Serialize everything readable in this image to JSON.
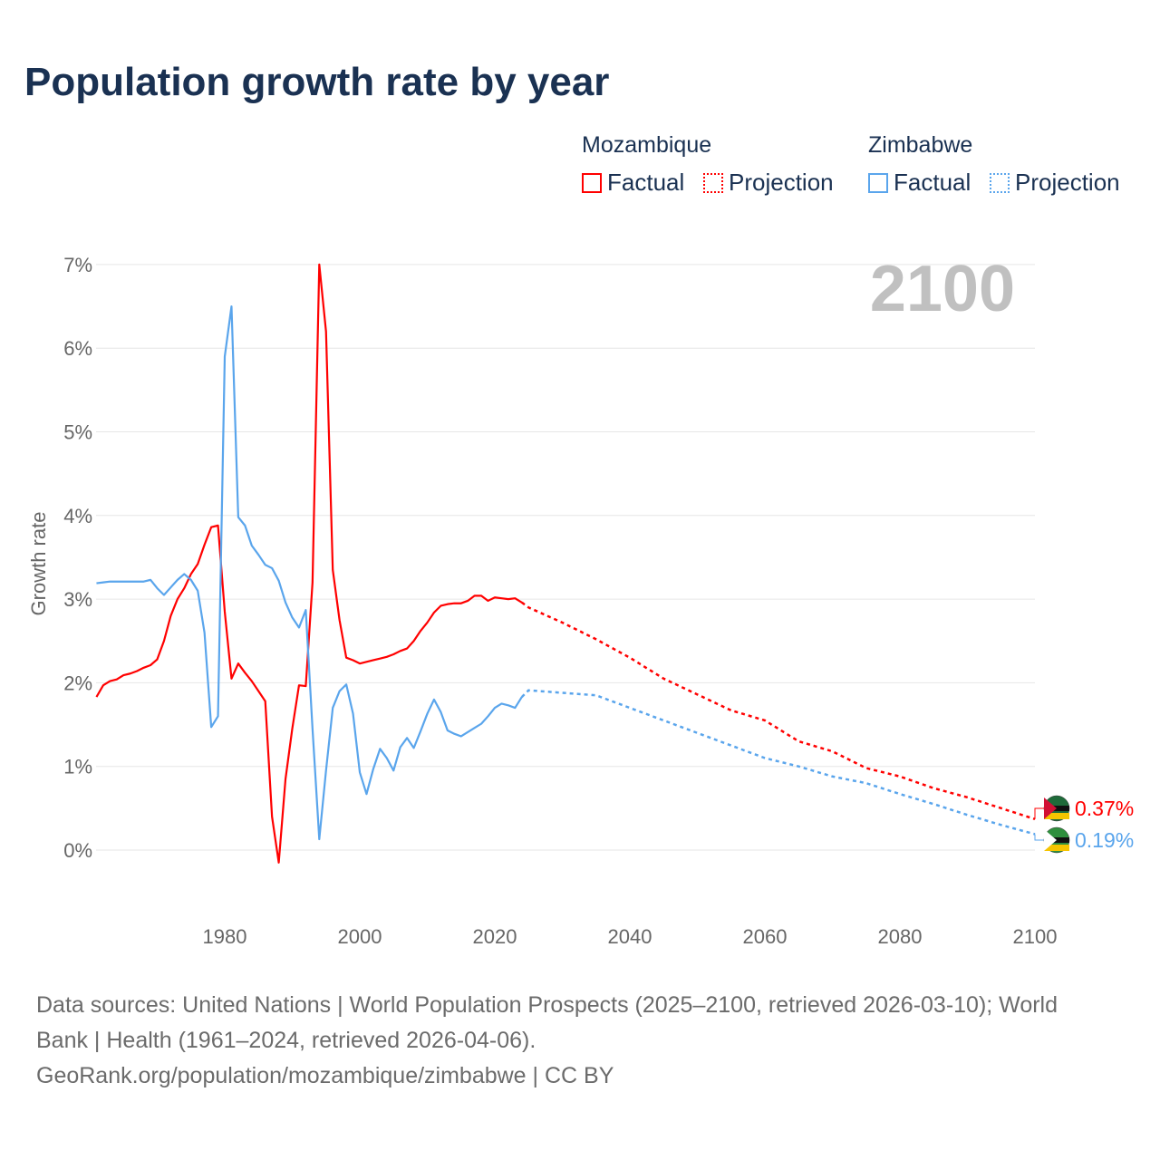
{
  "title": "Population growth rate by year",
  "legend": {
    "groups": [
      {
        "name": "Mozambique",
        "color": "#ff0000",
        "factual": "Factual",
        "projection": "Projection"
      },
      {
        "name": "Zimbabwe",
        "color": "#5aa5ec",
        "factual": "Factual",
        "projection": "Projection"
      }
    ]
  },
  "year_overlay": "2100",
  "source_lines": [
    "Data sources: United Nations | World Population Prospects (2025–2100, retrieved 2026-03-10); World",
    "Bank | Health (1961–2024, retrieved 2026-04-06).",
    "GeoRank.org/population/mozambique/zimbabwe | CC BY"
  ],
  "chart_data": {
    "type": "line",
    "title": "Population growth rate by year",
    "xlabel": "",
    "ylabel": "Growth rate",
    "xlim": [
      1961,
      2100
    ],
    "ylim": [
      -0.5,
      7.3
    ],
    "xticks": [
      1980,
      2000,
      2020,
      2040,
      2060,
      2080,
      2100
    ],
    "yticks": [
      0,
      1,
      2,
      3,
      4,
      5,
      6,
      7
    ],
    "ytick_labels": [
      "0%",
      "1%",
      "2%",
      "3%",
      "4%",
      "5%",
      "6%",
      "7%"
    ],
    "grid": true,
    "series": [
      {
        "name": "Mozambique",
        "color": "#ff0000",
        "end_label": "0.37%",
        "factual": {
          "x_start": 1961,
          "values": [
            1.83,
            1.97,
            2.02,
            2.04,
            2.09,
            2.11,
            2.14,
            2.18,
            2.21,
            2.28,
            2.5,
            2.8,
            3.0,
            3.13,
            3.3,
            3.42,
            3.65,
            3.86,
            3.88,
            2.85,
            2.05,
            2.23,
            2.12,
            2.02,
            1.9,
            1.78,
            0.4,
            -0.15,
            0.85,
            1.45,
            1.97,
            1.96,
            3.2,
            7.0,
            6.2,
            3.35,
            2.75,
            2.3,
            2.27,
            2.23,
            2.25,
            2.27,
            2.29,
            2.31,
            2.34,
            2.38,
            2.41,
            2.5,
            2.62,
            2.72,
            2.84,
            2.92,
            2.94,
            2.95,
            2.95,
            2.98,
            3.04,
            3.04,
            2.98,
            3.02,
            3.01,
            3.0,
            3.01,
            2.96
          ]
        },
        "projection": {
          "x": [
            2024,
            2025,
            2030,
            2035,
            2040,
            2045,
            2050,
            2055,
            2060,
            2065,
            2070,
            2075,
            2080,
            2085,
            2090,
            2095,
            2100
          ],
          "values": [
            2.96,
            2.9,
            2.72,
            2.52,
            2.3,
            2.05,
            1.86,
            1.67,
            1.55,
            1.3,
            1.18,
            0.98,
            0.88,
            0.74,
            0.63,
            0.5,
            0.37
          ]
        }
      },
      {
        "name": "Zimbabwe",
        "color": "#5aa5ec",
        "end_label": "0.19%",
        "factual": {
          "x_start": 1961,
          "values": [
            3.19,
            3.2,
            3.21,
            3.21,
            3.21,
            3.21,
            3.21,
            3.21,
            3.23,
            3.13,
            3.05,
            3.14,
            3.23,
            3.3,
            3.23,
            3.1,
            2.6,
            1.47,
            1.6,
            5.9,
            6.5,
            3.98,
            3.88,
            3.64,
            3.53,
            3.41,
            3.37,
            3.22,
            2.96,
            2.78,
            2.66,
            2.87,
            1.45,
            0.13,
            0.95,
            1.7,
            1.9,
            1.98,
            1.63,
            0.93,
            0.67,
            0.97,
            1.21,
            1.1,
            0.95,
            1.23,
            1.34,
            1.22,
            1.42,
            1.63,
            1.8,
            1.65,
            1.43,
            1.39,
            1.36,
            1.41,
            1.46,
            1.51,
            1.6,
            1.7,
            1.75,
            1.73,
            1.7,
            1.83
          ]
        },
        "projection": {
          "x": [
            2024,
            2025,
            2030,
            2035,
            2040,
            2045,
            2050,
            2055,
            2060,
            2065,
            2070,
            2075,
            2080,
            2085,
            2090,
            2095,
            2100
          ],
          "values": [
            1.83,
            1.91,
            1.88,
            1.85,
            1.7,
            1.55,
            1.4,
            1.25,
            1.1,
            1.0,
            0.88,
            0.8,
            0.67,
            0.55,
            0.42,
            0.3,
            0.19
          ]
        }
      }
    ]
  }
}
